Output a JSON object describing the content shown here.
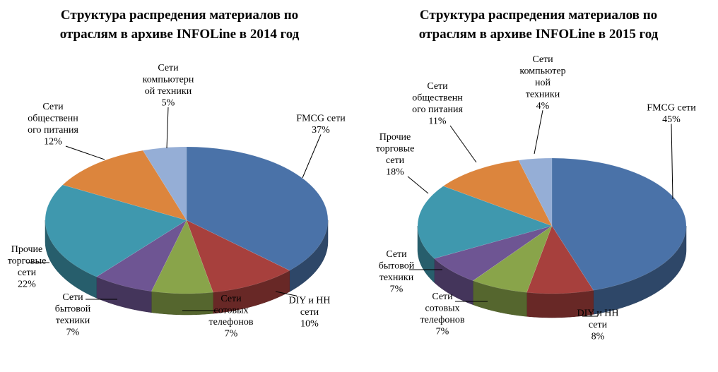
{
  "chart_data": [
    {
      "type": "pie",
      "title_lines": [
        "Структура распредения материалов по",
        "отраслям в архиве INFOLine в 2014 год"
      ],
      "title": "Структура распредения материалов по отраслям в архиве INFOLine в 2014 год",
      "slices": [
        {
          "label_lines": [
            "FMCG сети"
          ],
          "value": 37,
          "value_label": "37%",
          "color": "#4A72A8"
        },
        {
          "label_lines": [
            "DIY и НН",
            "сети"
          ],
          "value": 10,
          "value_label": "10%",
          "color": "#A7403D"
        },
        {
          "label_lines": [
            "Сети",
            "сотовых",
            "телефонов"
          ],
          "value": 7,
          "value_label": "7%",
          "color": "#89A44A"
        },
        {
          "label_lines": [
            "Сети",
            "бытовой",
            "техники"
          ],
          "value": 7,
          "value_label": "7%",
          "color": "#6E5593"
        },
        {
          "label_lines": [
            "Прочие",
            "торговые",
            "сети"
          ],
          "value": 22,
          "value_label": "22%",
          "color": "#3F98AE"
        },
        {
          "label_lines": [
            "Сети",
            "общественн",
            "ого питания"
          ],
          "value": 12,
          "value_label": "12%",
          "color": "#DC853D"
        },
        {
          "label_lines": [
            "Сети",
            "компьютерн",
            "ой техники"
          ],
          "value": 5,
          "value_label": "5%",
          "color": "#95AED6"
        }
      ]
    },
    {
      "type": "pie",
      "title_lines": [
        "Структура распредения материалов по",
        "отраслям в архиве INFOLine в 2015 год"
      ],
      "title": "Структура распредения материалов по отраслям в архиве INFOLine в 2015 год",
      "slices": [
        {
          "label_lines": [
            "FMCG сети"
          ],
          "value": 45,
          "value_label": "45%",
          "color": "#4A72A8"
        },
        {
          "label_lines": [
            "DIY и НН",
            "сети"
          ],
          "value": 8,
          "value_label": "8%",
          "color": "#A7403D"
        },
        {
          "label_lines": [
            "Сети",
            "сотовых",
            "телефонов"
          ],
          "value": 7,
          "value_label": "7%",
          "color": "#89A44A"
        },
        {
          "label_lines": [
            "Сети",
            "бытовой",
            "техники"
          ],
          "value": 7,
          "value_label": "7%",
          "color": "#6E5593"
        },
        {
          "label_lines": [
            "Прочие",
            "торговые",
            "сети"
          ],
          "value": 18,
          "value_label": "18%",
          "color": "#3F98AE"
        },
        {
          "label_lines": [
            "Сети",
            "общественн",
            "ого питания"
          ],
          "value": 11,
          "value_label": "11%",
          "color": "#DC853D"
        },
        {
          "label_lines": [
            "Сети",
            "компьютер",
            "ной",
            "техники"
          ],
          "value": 4,
          "value_label": "4%",
          "color": "#95AED6"
        }
      ]
    }
  ]
}
